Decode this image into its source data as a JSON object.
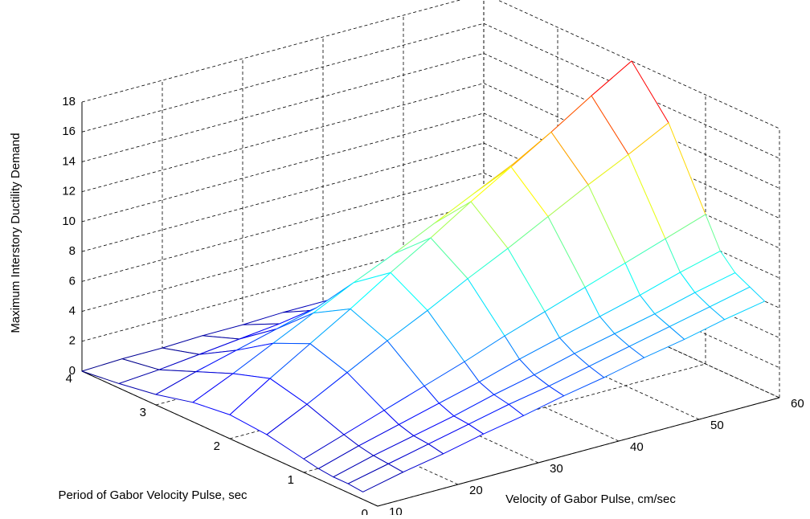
{
  "chart_data": {
    "type": "mesh",
    "xlabel": "Velocity of Gabor Pulse, cm/sec",
    "ylabel": "Period of Gabor Velocity Pulse, sec",
    "zlabel": "Maximum Interstory Ductility Demand",
    "x": [
      10,
      15,
      20,
      25,
      30,
      35,
      40,
      45,
      50,
      55,
      60
    ],
    "y": [
      0.2,
      0.4,
      0.6,
      0.8,
      1.0,
      1.5,
      2.0,
      2.5,
      3.0,
      3.5,
      4.0
    ],
    "z": [
      [
        0.5,
        1.1,
        1.6,
        2.2,
        2.7,
        3.3,
        3.8,
        4.4,
        4.9,
        5.5,
        6.0
      ],
      [
        0.6,
        1.2,
        1.8,
        2.4,
        3.0,
        3.5,
        4.1,
        4.7,
        5.3,
        5.9,
        6.5
      ],
      [
        0.6,
        1.3,
        1.9,
        2.5,
        3.2,
        3.8,
        4.5,
        5.1,
        5.7,
        6.4,
        7.0
      ],
      [
        0.7,
        1.5,
        2.2,
        2.9,
        3.6,
        4.4,
        5.1,
        5.8,
        6.5,
        7.3,
        8.0
      ],
      [
        0.9,
        1.8,
        2.7,
        3.6,
        4.5,
        5.5,
        6.4,
        7.3,
        8.2,
        9.1,
        10.0
      ],
      [
        1.4,
        2.7,
        4.1,
        5.5,
        6.8,
        8.2,
        9.5,
        10.9,
        12.3,
        13.6,
        15.0
      ],
      [
        1.6,
        3.3,
        4.9,
        6.5,
        8.2,
        9.8,
        11.5,
        13.1,
        14.7,
        16.4,
        18.0
      ],
      [
        1.3,
        2.5,
        3.8,
        5.1,
        6.4,
        7.6,
        8.9,
        10.2,
        11.5,
        12.7,
        14.0
      ],
      [
        0.7,
        1.5,
        2.2,
        2.9,
        3.6,
        4.4,
        5.1,
        5.8,
        6.5,
        7.3,
        8.0
      ],
      [
        0.3,
        0.5,
        0.8,
        1.1,
        1.4,
        1.6,
        1.9,
        2.2,
        2.5,
        2.7,
        3.0
      ],
      [
        0.0,
        0.1,
        0.1,
        0.2,
        0.2,
        0.3,
        0.3,
        0.4,
        0.4,
        0.5,
        0.5
      ]
    ],
    "xlim": [
      10,
      60
    ],
    "ylim": [
      0,
      4
    ],
    "zlim": [
      0,
      18
    ],
    "xticks": [
      10,
      20,
      30,
      40,
      50,
      60
    ],
    "yticks": [
      0,
      1,
      2,
      3,
      4
    ],
    "zticks": [
      0,
      2,
      4,
      6,
      8,
      10,
      12,
      14,
      16,
      18
    ],
    "grid": true,
    "colormap": "jet"
  }
}
